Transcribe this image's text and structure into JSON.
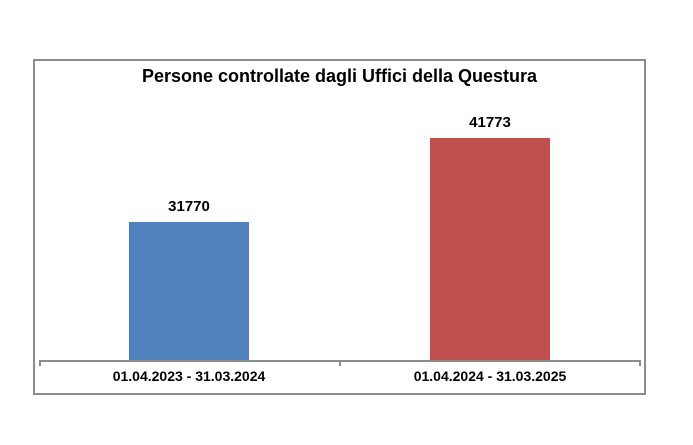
{
  "chart": {
    "title": "Persone controllate dagli Uffici della Questura",
    "bars": [
      {
        "value_label": "31770",
        "category": "01.04.2023 - 31.03.2024",
        "color": "#4F81BD"
      },
      {
        "value_label": "41773",
        "category": "01.04.2024 - 31.03.2025",
        "color": "#C0504D"
      }
    ]
  },
  "chart_data": {
    "type": "bar",
    "title": "Persone controllate dagli Uffici della Questura",
    "categories": [
      "01.04.2023 - 31.03.2024",
      "01.04.2024 - 31.03.2025"
    ],
    "values": [
      31770,
      41773
    ],
    "series_colors": [
      "#4F81BD",
      "#C0504D"
    ],
    "xlabel": "",
    "ylabel": "",
    "data_labels": true,
    "legend_position": "none",
    "grid": false,
    "axis_color": "#8C8C8C",
    "border_color": "#8C8C8C",
    "text_color": "#000000",
    "background": "#ffffff"
  }
}
